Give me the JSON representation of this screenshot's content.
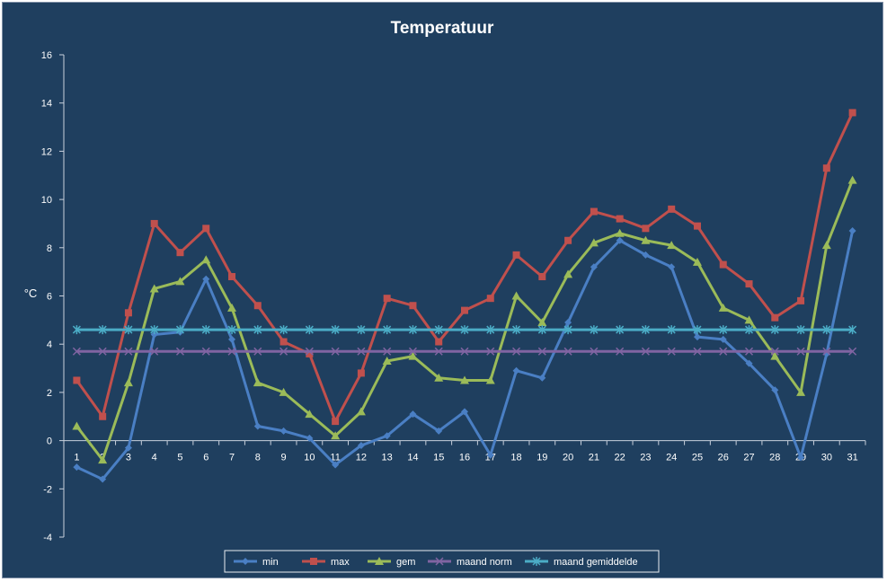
{
  "chart_data": {
    "type": "line",
    "title": "Temperatuur",
    "ylabel": "°C",
    "xlabel": "",
    "ylim": [
      -4,
      16
    ],
    "yticks": [
      -4,
      -2,
      0,
      2,
      4,
      6,
      8,
      10,
      12,
      14,
      16
    ],
    "categories": [
      "1",
      "2",
      "3",
      "4",
      "5",
      "6",
      "7",
      "8",
      "9",
      "10",
      "11",
      "12",
      "13",
      "14",
      "15",
      "16",
      "17",
      "18",
      "19",
      "20",
      "21",
      "22",
      "23",
      "24",
      "25",
      "26",
      "27",
      "28",
      "29",
      "30",
      "31"
    ],
    "legend_position": "bottom",
    "background": "#1f3f5f",
    "series": [
      {
        "name": "min",
        "color": "#4a7fc4",
        "marker": "diamond",
        "values": [
          -1.1,
          -1.6,
          -0.3,
          4.4,
          4.5,
          6.7,
          4.2,
          0.6,
          0.4,
          0.1,
          -1.0,
          -0.2,
          0.2,
          1.1,
          0.4,
          1.2,
          -0.6,
          2.9,
          2.6,
          4.9,
          7.2,
          8.3,
          7.7,
          7.2,
          4.3,
          4.2,
          3.2,
          2.1,
          -0.7,
          3.6,
          8.7
        ]
      },
      {
        "name": "max",
        "color": "#c0504d",
        "marker": "square",
        "values": [
          2.5,
          1.0,
          5.3,
          9.0,
          7.8,
          8.8,
          6.8,
          5.6,
          4.1,
          3.6,
          0.8,
          2.8,
          5.9,
          5.6,
          4.1,
          5.4,
          5.9,
          7.7,
          6.8,
          8.3,
          9.5,
          9.2,
          8.8,
          9.6,
          8.9,
          7.3,
          6.5,
          5.1,
          5.8,
          11.3,
          13.6
        ]
      },
      {
        "name": "gem",
        "color": "#9bbb59",
        "marker": "triangle",
        "values": [
          0.6,
          -0.8,
          2.4,
          6.3,
          6.6,
          7.5,
          5.5,
          2.4,
          2.0,
          1.1,
          0.2,
          1.2,
          3.3,
          3.5,
          2.6,
          2.5,
          2.5,
          6.0,
          4.9,
          6.9,
          8.2,
          8.6,
          8.3,
          8.1,
          7.4,
          5.5,
          5.0,
          3.5,
          2.0,
          8.1,
          10.8
        ]
      },
      {
        "name": "maand norm",
        "color": "#8064a2",
        "marker": "x",
        "values": [
          3.7,
          3.7,
          3.7,
          3.7,
          3.7,
          3.7,
          3.7,
          3.7,
          3.7,
          3.7,
          3.7,
          3.7,
          3.7,
          3.7,
          3.7,
          3.7,
          3.7,
          3.7,
          3.7,
          3.7,
          3.7,
          3.7,
          3.7,
          3.7,
          3.7,
          3.7,
          3.7,
          3.7,
          3.7,
          3.7,
          3.7
        ]
      },
      {
        "name": "maand gemiddelde",
        "color": "#4bacc6",
        "marker": "star",
        "values": [
          4.6,
          4.6,
          4.6,
          4.6,
          4.6,
          4.6,
          4.6,
          4.6,
          4.6,
          4.6,
          4.6,
          4.6,
          4.6,
          4.6,
          4.6,
          4.6,
          4.6,
          4.6,
          4.6,
          4.6,
          4.6,
          4.6,
          4.6,
          4.6,
          4.6,
          4.6,
          4.6,
          4.6,
          4.6,
          4.6,
          4.6
        ]
      }
    ]
  }
}
